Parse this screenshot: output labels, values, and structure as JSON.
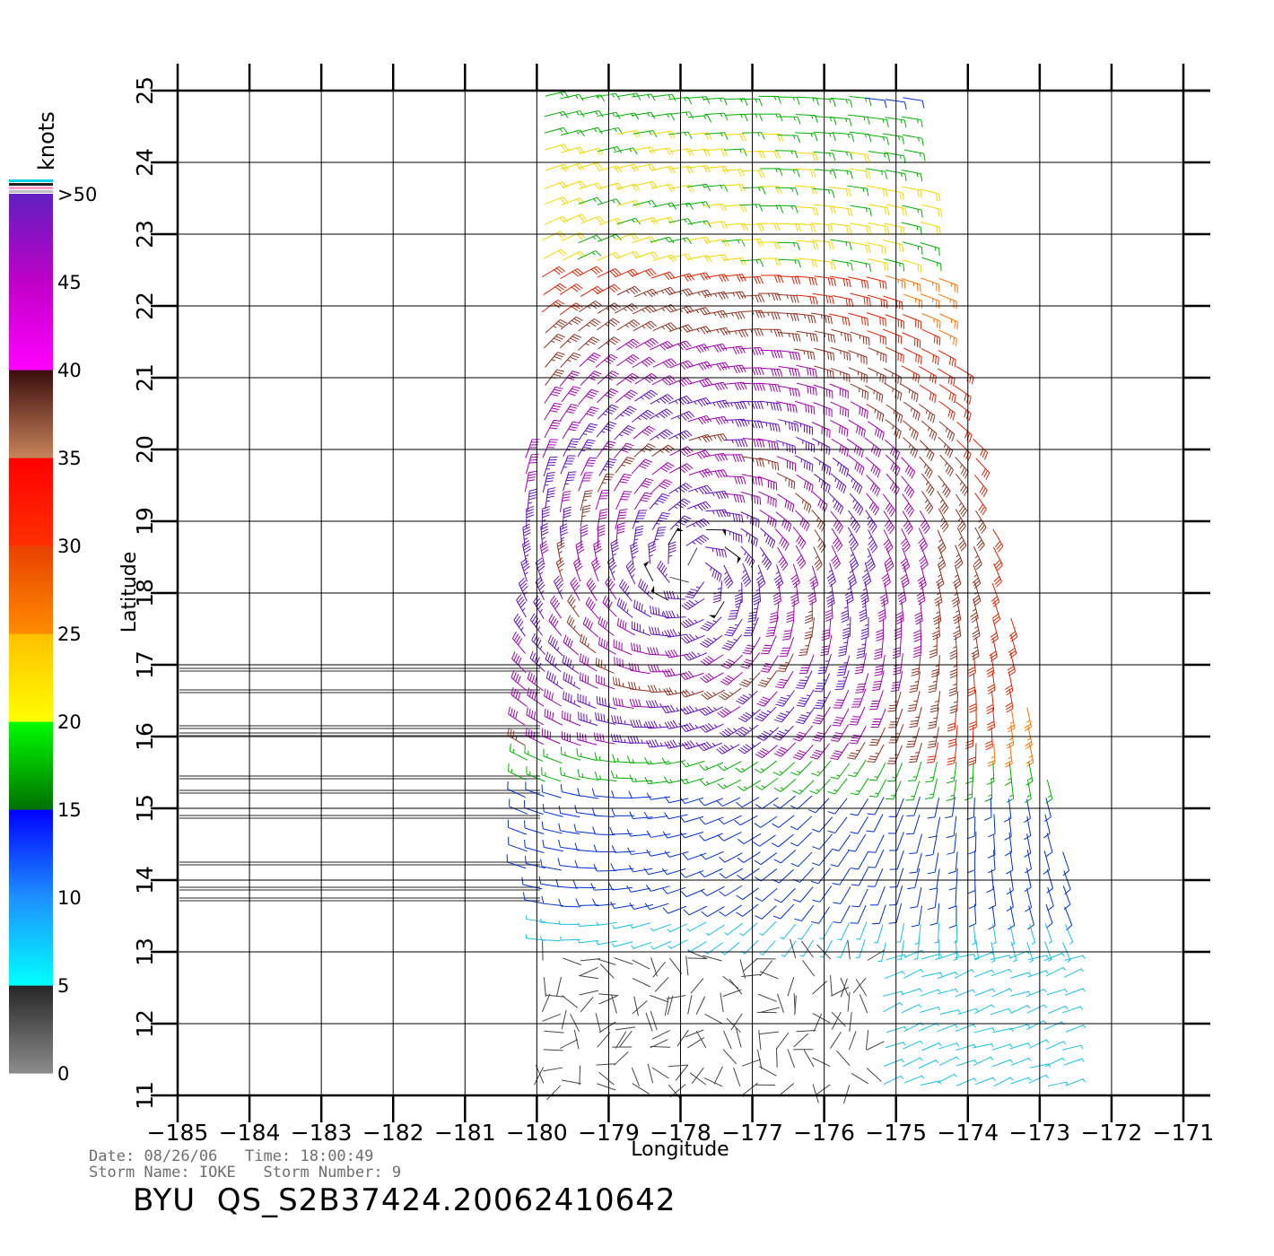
{
  "chart_data": {
    "type": "scatter",
    "subtype": "wind-barb-field",
    "xlabel": "Longitude",
    "ylabel": "Latitude",
    "xlim": [
      -185,
      -171
    ],
    "ylim": [
      11,
      25
    ],
    "xticks": [
      -185,
      -184,
      -183,
      -182,
      -181,
      -180,
      -179,
      -178,
      -177,
      -176,
      -175,
      -174,
      -173,
      -172,
      -171
    ],
    "yticks": [
      11,
      12,
      13,
      14,
      15,
      16,
      17,
      18,
      19,
      20,
      21,
      22,
      23,
      24,
      25
    ],
    "grid": true,
    "swath": {
      "corners_lon_lat": [
        [
          -179.9,
          25.0
        ],
        [
          -174.9,
          25.0
        ],
        [
          -173.0,
          15.8
        ],
        [
          -171.6,
          11.0
        ],
        [
          -180.0,
          11.0
        ],
        [
          -180.3,
          17.2
        ]
      ]
    },
    "cyclone_center": {
      "lon": -177.8,
      "lat": 18.3
    },
    "speed_units": "knots",
    "colorbar": {
      "title": "knots",
      "tick_labels": [
        "0",
        "5",
        "10",
        "15",
        "20",
        "25",
        "30",
        "35",
        "40",
        "45",
        ">50"
      ],
      "bands": [
        {
          "min": 0,
          "max": 5,
          "colors": [
            "#8c8c8c",
            "#262626"
          ]
        },
        {
          "min": 5,
          "max": 10,
          "colors": [
            "#00ffff",
            "#1e90ff"
          ]
        },
        {
          "min": 10,
          "max": 15,
          "colors": [
            "#1e90ff",
            "#0000ff"
          ]
        },
        {
          "min": 15,
          "max": 20,
          "colors": [
            "#007000",
            "#00ff00"
          ]
        },
        {
          "min": 20,
          "max": 25,
          "colors": [
            "#ffff00",
            "#ffc000"
          ]
        },
        {
          "min": 25,
          "max": 30,
          "colors": [
            "#ff8c00",
            "#e84000"
          ]
        },
        {
          "min": 30,
          "max": 35,
          "colors": [
            "#ff3000",
            "#ff0000"
          ]
        },
        {
          "min": 35,
          "max": 40,
          "colors": [
            "#c8845a",
            "#3a0c0c"
          ]
        },
        {
          "min": 40,
          "max": 45,
          "colors": [
            "#ff00ff",
            "#c000c8"
          ]
        },
        {
          "min": 45,
          "max": 50,
          "colors": [
            "#c000c8",
            "#6020c0"
          ]
        }
      ]
    },
    "speed_colors": [
      {
        "max": 5,
        "color": "#444444"
      },
      {
        "max": 10,
        "color": "#18c0e8"
      },
      {
        "max": 15,
        "color": "#0030d0"
      },
      {
        "max": 20,
        "color": "#00b000"
      },
      {
        "max": 25,
        "color": "#f0d800"
      },
      {
        "max": 30,
        "color": "#ff7000"
      },
      {
        "max": 35,
        "color": "#e02000"
      },
      {
        "max": 40,
        "color": "#903020"
      },
      {
        "max": 45,
        "color": "#a000b0"
      },
      {
        "max": 50,
        "color": "#6010c0"
      },
      {
        "max": 999,
        "color": "#111111"
      }
    ]
  },
  "info": {
    "date_label": "Date:",
    "date": "08/26/06",
    "time_label": "Time:",
    "time": "18:00:49",
    "storm_name_label": "Storm Name:",
    "storm_name": "IOKE",
    "storm_number_label": "Storm Number:",
    "storm_number": "9"
  },
  "product": {
    "prefix": "BYU",
    "id": "QS_S2B37424.20062410642"
  }
}
